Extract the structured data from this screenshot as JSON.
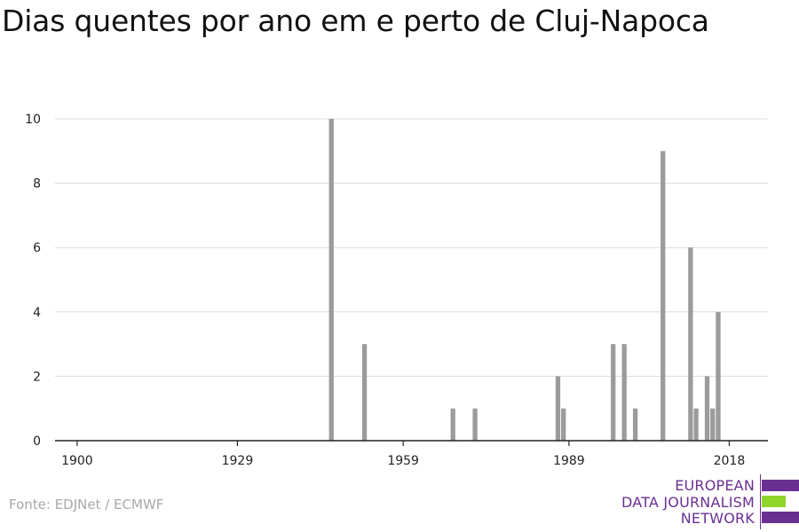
{
  "chart_data": {
    "type": "bar",
    "title": "Dias quentes por ano em e perto de Cluj-Napoca",
    "xlabel": "",
    "ylabel": "",
    "x_ticks": [
      "1900",
      "1929",
      "1959",
      "1989",
      "2018"
    ],
    "y_ticks": [
      "0",
      "2",
      "4",
      "6",
      "8",
      "10"
    ],
    "xlim": [
      1896,
      2025
    ],
    "ylim": [
      0,
      10
    ],
    "grid": true,
    "bar_color": "#9b9b9b",
    "series": [
      {
        "x": [
          1946,
          1952,
          1968,
          1972,
          1987,
          1988,
          1997,
          1999,
          2001,
          2006,
          2011,
          2012,
          2014,
          2015,
          2016
        ],
        "values": [
          10,
          3,
          1,
          1,
          2,
          1,
          3,
          3,
          1,
          9,
          6,
          1,
          2,
          1,
          4
        ]
      }
    ]
  },
  "source": "Fonte: EDJNet / ECMWF",
  "logo": {
    "line1": "EUROPEAN",
    "line2": "DATA JOURNALISM",
    "line3": "NETWORK",
    "purple": "#6a2f92",
    "green": "#8fd52a"
  }
}
